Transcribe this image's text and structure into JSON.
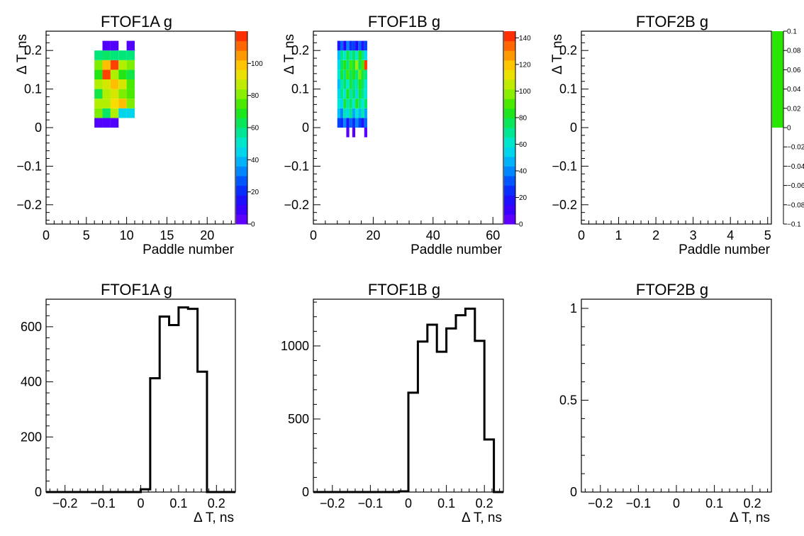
{
  "chart_data": [
    {
      "type": "heatmap",
      "title": "FTOF1A g",
      "xlabel": "Paddle number",
      "ylabel": "Δ T, ns",
      "xlim": [
        0,
        23.5
      ],
      "ylim": [
        -0.25,
        0.25
      ],
      "x_ticks": [
        "0",
        "5",
        "10",
        "15",
        "20"
      ],
      "y_ticks": [
        "−0.2",
        "−0.1",
        "0",
        "0.1",
        "0.2"
      ],
      "colorbar": {
        "min": 0,
        "max": 120,
        "ticks": [
          "0",
          "20",
          "40",
          "60",
          "80",
          "100"
        ]
      },
      "bin_width": 1,
      "bin_height": 0.025,
      "cells": [
        {
          "x": 6,
          "y": 0,
          "v": 5
        },
        {
          "x": 7,
          "y": 0,
          "v": 5
        },
        {
          "x": 8,
          "y": 0,
          "v": 5
        },
        {
          "x": 6,
          "y": 0.025,
          "v": 80
        },
        {
          "x": 7,
          "y": 0.025,
          "v": 62
        },
        {
          "x": 8,
          "y": 0.025,
          "v": 85
        },
        {
          "x": 9,
          "y": 0.025,
          "v": 45
        },
        {
          "x": 10,
          "y": 0.025,
          "v": 45
        },
        {
          "x": 6,
          "y": 0.05,
          "v": 85
        },
        {
          "x": 7,
          "y": 0.05,
          "v": 85
        },
        {
          "x": 8,
          "y": 0.05,
          "v": 95
        },
        {
          "x": 9,
          "y": 0.05,
          "v": 100
        },
        {
          "x": 10,
          "y": 0.05,
          "v": 80
        },
        {
          "x": 6,
          "y": 0.075,
          "v": 65
        },
        {
          "x": 7,
          "y": 0.075,
          "v": 85
        },
        {
          "x": 8,
          "y": 0.075,
          "v": 90
        },
        {
          "x": 9,
          "y": 0.075,
          "v": 80
        },
        {
          "x": 10,
          "y": 0.075,
          "v": 75
        },
        {
          "x": 6,
          "y": 0.1,
          "v": 85
        },
        {
          "x": 7,
          "y": 0.1,
          "v": 90
        },
        {
          "x": 8,
          "y": 0.1,
          "v": 100
        },
        {
          "x": 9,
          "y": 0.1,
          "v": 90
        },
        {
          "x": 10,
          "y": 0.1,
          "v": 75
        },
        {
          "x": 6,
          "y": 0.125,
          "v": 70
        },
        {
          "x": 7,
          "y": 0.125,
          "v": 115
        },
        {
          "x": 8,
          "y": 0.125,
          "v": 85
        },
        {
          "x": 9,
          "y": 0.125,
          "v": 70
        },
        {
          "x": 10,
          "y": 0.125,
          "v": 65
        },
        {
          "x": 6,
          "y": 0.15,
          "v": 80
        },
        {
          "x": 7,
          "y": 0.15,
          "v": 100
        },
        {
          "x": 8,
          "y": 0.15,
          "v": 115
        },
        {
          "x": 9,
          "y": 0.15,
          "v": 85
        },
        {
          "x": 10,
          "y": 0.15,
          "v": 80
        },
        {
          "x": 6,
          "y": 0.175,
          "v": 60
        },
        {
          "x": 7,
          "y": 0.175,
          "v": 62
        },
        {
          "x": 8,
          "y": 0.175,
          "v": 60
        },
        {
          "x": 9,
          "y": 0.175,
          "v": 60
        },
        {
          "x": 10,
          "y": 0.175,
          "v": 60
        },
        {
          "x": 7,
          "y": 0.2,
          "v": 5
        },
        {
          "x": 8,
          "y": 0.2,
          "v": 5
        },
        {
          "x": 10,
          "y": 0.2,
          "v": 5
        }
      ]
    },
    {
      "type": "heatmap",
      "title": "FTOF1B g",
      "xlabel": "Paddle number",
      "ylabel": "Δ T, ns",
      "xlim": [
        0,
        63.5
      ],
      "ylim": [
        -0.25,
        0.25
      ],
      "x_ticks": [
        "0",
        "20",
        "40",
        "60"
      ],
      "y_ticks": [
        "−0.2",
        "−0.1",
        "0",
        "0.1",
        "0.2"
      ],
      "colorbar": {
        "min": 0,
        "max": 145,
        "ticks": [
          "0",
          "20",
          "40",
          "60",
          "80",
          "100",
          "120",
          "140"
        ]
      },
      "bin_width": 1,
      "bin_height": 0.025,
      "cells": [
        {
          "x": 11,
          "y": -0.025,
          "v": 5
        },
        {
          "x": 13,
          "y": -0.025,
          "v": 5
        },
        {
          "x": 17,
          "y": -0.025,
          "v": 5
        },
        {
          "x": 8,
          "y": 0,
          "v": 30
        },
        {
          "x": 9,
          "y": 0,
          "v": 25
        },
        {
          "x": 10,
          "y": 0,
          "v": 40
        },
        {
          "x": 11,
          "y": 0,
          "v": 20
        },
        {
          "x": 12,
          "y": 0,
          "v": 35
        },
        {
          "x": 13,
          "y": 0,
          "v": 25
        },
        {
          "x": 14,
          "y": 0,
          "v": 40
        },
        {
          "x": 15,
          "y": 0,
          "v": 30
        },
        {
          "x": 16,
          "y": 0,
          "v": 20
        },
        {
          "x": 17,
          "y": 0,
          "v": 35
        },
        {
          "x": 8,
          "y": 0.025,
          "v": 50
        },
        {
          "x": 9,
          "y": 0.025,
          "v": 40
        },
        {
          "x": 10,
          "y": 0.025,
          "v": 65
        },
        {
          "x": 11,
          "y": 0.025,
          "v": 55
        },
        {
          "x": 12,
          "y": 0.025,
          "v": 70
        },
        {
          "x": 13,
          "y": 0.025,
          "v": 45
        },
        {
          "x": 14,
          "y": 0.025,
          "v": 60
        },
        {
          "x": 15,
          "y": 0.025,
          "v": 50
        },
        {
          "x": 16,
          "y": 0.025,
          "v": 65
        },
        {
          "x": 17,
          "y": 0.025,
          "v": 45
        },
        {
          "x": 8,
          "y": 0.05,
          "v": 60
        },
        {
          "x": 9,
          "y": 0.05,
          "v": 55
        },
        {
          "x": 10,
          "y": 0.05,
          "v": 80
        },
        {
          "x": 11,
          "y": 0.05,
          "v": 65
        },
        {
          "x": 12,
          "y": 0.05,
          "v": 75
        },
        {
          "x": 13,
          "y": 0.05,
          "v": 60
        },
        {
          "x": 14,
          "y": 0.05,
          "v": 85
        },
        {
          "x": 15,
          "y": 0.05,
          "v": 70
        },
        {
          "x": 16,
          "y": 0.05,
          "v": 60
        },
        {
          "x": 17,
          "y": 0.05,
          "v": 75
        },
        {
          "x": 8,
          "y": 0.075,
          "v": 55
        },
        {
          "x": 9,
          "y": 0.075,
          "v": 70
        },
        {
          "x": 10,
          "y": 0.075,
          "v": 60
        },
        {
          "x": 11,
          "y": 0.075,
          "v": 85
        },
        {
          "x": 12,
          "y": 0.075,
          "v": 65
        },
        {
          "x": 13,
          "y": 0.075,
          "v": 75
        },
        {
          "x": 14,
          "y": 0.075,
          "v": 55
        },
        {
          "x": 15,
          "y": 0.075,
          "v": 80
        },
        {
          "x": 16,
          "y": 0.075,
          "v": 70
        },
        {
          "x": 17,
          "y": 0.075,
          "v": 60
        },
        {
          "x": 8,
          "y": 0.1,
          "v": 50
        },
        {
          "x": 9,
          "y": 0.1,
          "v": 65
        },
        {
          "x": 10,
          "y": 0.1,
          "v": 75
        },
        {
          "x": 11,
          "y": 0.1,
          "v": 60
        },
        {
          "x": 12,
          "y": 0.1,
          "v": 80
        },
        {
          "x": 13,
          "y": 0.1,
          "v": 70
        },
        {
          "x": 14,
          "y": 0.1,
          "v": 65
        },
        {
          "x": 15,
          "y": 0.1,
          "v": 85
        },
        {
          "x": 16,
          "y": 0.1,
          "v": 75
        },
        {
          "x": 17,
          "y": 0.1,
          "v": 60
        },
        {
          "x": 8,
          "y": 0.125,
          "v": 60
        },
        {
          "x": 9,
          "y": 0.125,
          "v": 80
        },
        {
          "x": 10,
          "y": 0.125,
          "v": 70
        },
        {
          "x": 11,
          "y": 0.125,
          "v": 90
        },
        {
          "x": 12,
          "y": 0.125,
          "v": 75
        },
        {
          "x": 13,
          "y": 0.125,
          "v": 85
        },
        {
          "x": 14,
          "y": 0.125,
          "v": 70
        },
        {
          "x": 15,
          "y": 0.125,
          "v": 95
        },
        {
          "x": 16,
          "y": 0.125,
          "v": 80
        },
        {
          "x": 17,
          "y": 0.125,
          "v": 70
        },
        {
          "x": 8,
          "y": 0.15,
          "v": 55
        },
        {
          "x": 9,
          "y": 0.15,
          "v": 75
        },
        {
          "x": 10,
          "y": 0.15,
          "v": 85
        },
        {
          "x": 11,
          "y": 0.15,
          "v": 70
        },
        {
          "x": 12,
          "y": 0.15,
          "v": 90
        },
        {
          "x": 13,
          "y": 0.15,
          "v": 80
        },
        {
          "x": 14,
          "y": 0.15,
          "v": 100
        },
        {
          "x": 15,
          "y": 0.15,
          "v": 75
        },
        {
          "x": 16,
          "y": 0.15,
          "v": 90
        },
        {
          "x": 17,
          "y": 0.15,
          "v": 140
        },
        {
          "x": 8,
          "y": 0.175,
          "v": 50
        },
        {
          "x": 9,
          "y": 0.175,
          "v": 70
        },
        {
          "x": 10,
          "y": 0.175,
          "v": 60
        },
        {
          "x": 11,
          "y": 0.175,
          "v": 80
        },
        {
          "x": 12,
          "y": 0.175,
          "v": 65
        },
        {
          "x": 13,
          "y": 0.175,
          "v": 75
        },
        {
          "x": 14,
          "y": 0.175,
          "v": 60
        },
        {
          "x": 15,
          "y": 0.175,
          "v": 85
        },
        {
          "x": 16,
          "y": 0.175,
          "v": 70
        },
        {
          "x": 17,
          "y": 0.175,
          "v": 55
        },
        {
          "x": 8,
          "y": 0.2,
          "v": 20
        },
        {
          "x": 9,
          "y": 0.2,
          "v": 35
        },
        {
          "x": 10,
          "y": 0.2,
          "v": 15
        },
        {
          "x": 11,
          "y": 0.2,
          "v": 40
        },
        {
          "x": 12,
          "y": 0.2,
          "v": 25
        },
        {
          "x": 13,
          "y": 0.2,
          "v": 30
        },
        {
          "x": 14,
          "y": 0.2,
          "v": 15
        },
        {
          "x": 15,
          "y": 0.2,
          "v": 35
        },
        {
          "x": 16,
          "y": 0.2,
          "v": 20
        },
        {
          "x": 17,
          "y": 0.2,
          "v": 30
        }
      ]
    },
    {
      "type": "heatmap",
      "title": "FTOF2B g",
      "xlabel": "Paddle number",
      "ylabel": "Δ T, ns",
      "xlim": [
        0,
        5.1
      ],
      "ylim": [
        -0.25,
        0.25
      ],
      "x_ticks": [
        "0",
        "1",
        "2",
        "3",
        "4",
        "5"
      ],
      "y_ticks": [
        "−0.2",
        "−0.1",
        "0",
        "0.1",
        "0.2"
      ],
      "colorbar": {
        "min": -0.1,
        "max": 0.1,
        "ticks": [
          "0.1",
          "0.08",
          "0.06",
          "0.04",
          "0.02",
          "0",
          "−0.02",
          "−0.04",
          "−0.06",
          "−0.08",
          "−0.1"
        ]
      },
      "cells": []
    },
    {
      "type": "bar",
      "title": "FTOF1A g",
      "xlabel": "Δ T, ns",
      "ylabel": "",
      "xlim": [
        -0.25,
        0.25
      ],
      "ylim": [
        0,
        700
      ],
      "x_ticks": [
        "−0.2",
        "−0.1",
        "0",
        "0.1",
        "0.2"
      ],
      "y_ticks": [
        "0",
        "200",
        "400",
        "600"
      ],
      "bin_width": 0.025,
      "x": [
        -0.25,
        -0.225,
        -0.2,
        -0.175,
        -0.15,
        -0.125,
        -0.1,
        -0.075,
        -0.05,
        -0.025,
        0,
        0.025,
        0.05,
        0.075,
        0.1,
        0.125,
        0.15,
        0.175,
        0.2,
        0.225
      ],
      "values": [
        0,
        0,
        0,
        0,
        0,
        0,
        0,
        0,
        0,
        0,
        10,
        413,
        637,
        606,
        670,
        665,
        437,
        0,
        0,
        0
      ]
    },
    {
      "type": "bar",
      "title": "FTOF1B g",
      "xlabel": "Δ T, ns",
      "ylabel": "",
      "xlim": [
        -0.25,
        0.25
      ],
      "ylim": [
        0,
        1320
      ],
      "x_ticks": [
        "−0.2",
        "−0.1",
        "0",
        "0.1",
        "0.2"
      ],
      "y_ticks": [
        "0",
        "500",
        "1000"
      ],
      "bin_width": 0.025,
      "x": [
        -0.25,
        -0.225,
        -0.2,
        -0.175,
        -0.15,
        -0.125,
        -0.1,
        -0.075,
        -0.05,
        -0.025,
        0,
        0.025,
        0.05,
        0.075,
        0.1,
        0.125,
        0.15,
        0.175,
        0.2,
        0.225
      ],
      "values": [
        0,
        0,
        0,
        0,
        0,
        0,
        0,
        0,
        0,
        5,
        680,
        1030,
        1145,
        960,
        1120,
        1210,
        1255,
        1035,
        360,
        0
      ]
    },
    {
      "type": "bar",
      "title": "FTOF2B g",
      "xlabel": "Δ T, ns",
      "ylabel": "",
      "xlim": [
        -0.25,
        0.25
      ],
      "ylim": [
        0,
        1.05
      ],
      "x_ticks": [
        "−0.2",
        "−0.1",
        "0",
        "0.1",
        "0.2"
      ],
      "y_ticks": [
        "0",
        "0.5",
        "1"
      ],
      "bin_width": 0.025,
      "x": [],
      "values": []
    }
  ]
}
